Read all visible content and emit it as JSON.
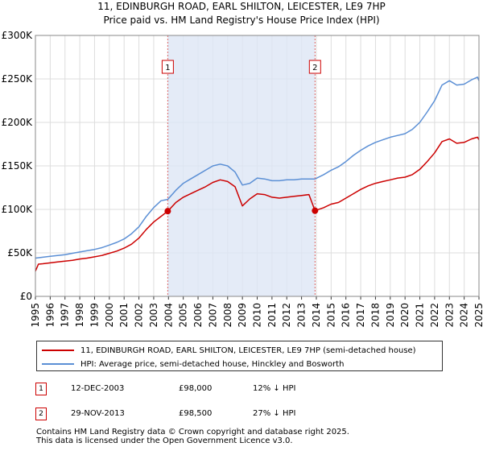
{
  "title_line1": "11, EDINBURGH ROAD, EARL SHILTON, LEICESTER, LE9 7HP",
  "title_line2": "Price paid vs. HM Land Registry's House Price Index (HPI)",
  "legend": {
    "property_label": "11, EDINBURGH ROAD, EARL SHILTON, LEICESTER, LE9 7HP (semi-detached house)",
    "hpi_label": "HPI: Average price, semi-detached house, Hinckley and Bosworth"
  },
  "sales": [
    {
      "num": "1",
      "date": "12-DEC-2003",
      "price": "£98,000",
      "hpi": "12% ↓ HPI"
    },
    {
      "num": "2",
      "date": "29-NOV-2013",
      "price": "£98,500",
      "hpi": "27% ↓ HPI"
    }
  ],
  "footer_line1": "Contains HM Land Registry data © Crown copyright and database right 2025.",
  "footer_line2": "This data is licensed under the Open Government Licence v3.0.",
  "colors": {
    "property": "#cc0000",
    "hpi": "#5b8fd5",
    "shade": "#dde6f5",
    "grid": "#dddddd"
  },
  "chart_data": {
    "type": "line",
    "title": "Price paid vs. HM Land Registry's House Price Index (HPI)",
    "xlabel": "",
    "ylabel": "",
    "xlim": [
      1995,
      2025
    ],
    "ylim": [
      0,
      300000
    ],
    "x_ticks": [
      "1995",
      "1996",
      "1997",
      "1998",
      "1999",
      "2000",
      "2001",
      "2002",
      "2003",
      "2004",
      "2005",
      "2006",
      "2007",
      "2008",
      "2009",
      "2010",
      "2011",
      "2012",
      "2013",
      "2014",
      "2015",
      "2016",
      "2017",
      "2018",
      "2019",
      "2020",
      "2021",
      "2022",
      "2023",
      "2024",
      "2025"
    ],
    "y_ticks": [
      0,
      50000,
      100000,
      150000,
      200000,
      250000,
      300000
    ],
    "y_tick_labels": [
      "£0",
      "£50K",
      "£100K",
      "£150K",
      "£200K",
      "£250K",
      "£300K"
    ],
    "shaded_range": [
      2003.95,
      2013.91
    ],
    "markers": [
      {
        "label": "1",
        "x": 2003.95,
        "y": 98000
      },
      {
        "label": "2",
        "x": 2013.91,
        "y": 98500
      }
    ],
    "series": [
      {
        "name": "HPI: Average price, semi-detached house, Hinckley and Bosworth",
        "points": [
          [
            1995.0,
            44000
          ],
          [
            1995.5,
            45000
          ],
          [
            1996.0,
            46000
          ],
          [
            1996.5,
            47000
          ],
          [
            1997.0,
            48000
          ],
          [
            1997.5,
            49500
          ],
          [
            1998.0,
            51000
          ],
          [
            1998.5,
            52500
          ],
          [
            1999.0,
            54000
          ],
          [
            1999.5,
            56000
          ],
          [
            2000.0,
            59000
          ],
          [
            2000.5,
            62000
          ],
          [
            2001.0,
            66000
          ],
          [
            2001.5,
            72000
          ],
          [
            2002.0,
            80000
          ],
          [
            2002.5,
            92000
          ],
          [
            2003.0,
            102000
          ],
          [
            2003.5,
            110000
          ],
          [
            2003.95,
            111500
          ],
          [
            2004.5,
            122000
          ],
          [
            2005.0,
            130000
          ],
          [
            2005.5,
            135000
          ],
          [
            2006.0,
            140000
          ],
          [
            2006.5,
            145000
          ],
          [
            2007.0,
            150000
          ],
          [
            2007.5,
            152000
          ],
          [
            2008.0,
            150000
          ],
          [
            2008.5,
            143000
          ],
          [
            2009.0,
            128000
          ],
          [
            2009.5,
            130000
          ],
          [
            2010.0,
            136000
          ],
          [
            2010.5,
            135000
          ],
          [
            2011.0,
            133000
          ],
          [
            2011.5,
            133000
          ],
          [
            2012.0,
            134000
          ],
          [
            2012.5,
            134000
          ],
          [
            2013.0,
            135000
          ],
          [
            2013.5,
            135000
          ],
          [
            2013.91,
            135000
          ],
          [
            2014.5,
            140000
          ],
          [
            2015.0,
            145000
          ],
          [
            2015.5,
            149000
          ],
          [
            2016.0,
            155000
          ],
          [
            2016.5,
            162000
          ],
          [
            2017.0,
            168000
          ],
          [
            2017.5,
            173000
          ],
          [
            2018.0,
            177000
          ],
          [
            2018.5,
            180000
          ],
          [
            2019.0,
            183000
          ],
          [
            2019.5,
            185000
          ],
          [
            2020.0,
            187000
          ],
          [
            2020.5,
            192000
          ],
          [
            2021.0,
            200000
          ],
          [
            2021.5,
            212000
          ],
          [
            2022.0,
            225000
          ],
          [
            2022.5,
            243000
          ],
          [
            2023.0,
            248000
          ],
          [
            2023.5,
            243000
          ],
          [
            2024.0,
            244000
          ],
          [
            2024.5,
            249000
          ],
          [
            2024.9,
            252000
          ],
          [
            2025.0,
            248000
          ]
        ]
      },
      {
        "name": "11, EDINBURGH ROAD, EARL SHILTON, LEICESTER, LE9 7HP (semi-detached house)",
        "points": [
          [
            1995.0,
            29000
          ],
          [
            1995.2,
            37000
          ],
          [
            1995.5,
            37500
          ],
          [
            1996.0,
            38500
          ],
          [
            1996.5,
            39500
          ],
          [
            1997.0,
            40500
          ],
          [
            1997.5,
            41500
          ],
          [
            1998.0,
            43000
          ],
          [
            1998.5,
            44000
          ],
          [
            1999.0,
            45500
          ],
          [
            1999.5,
            47000
          ],
          [
            2000.0,
            49500
          ],
          [
            2000.5,
            52000
          ],
          [
            2001.0,
            55500
          ],
          [
            2001.5,
            60000
          ],
          [
            2002.0,
            67000
          ],
          [
            2002.5,
            77000
          ],
          [
            2003.0,
            85500
          ],
          [
            2003.5,
            92000
          ],
          [
            2003.95,
            98000
          ],
          [
            2004.5,
            108000
          ],
          [
            2005.0,
            114000
          ],
          [
            2005.5,
            118000
          ],
          [
            2006.0,
            122000
          ],
          [
            2006.5,
            126000
          ],
          [
            2007.0,
            131000
          ],
          [
            2007.5,
            134000
          ],
          [
            2008.0,
            132000
          ],
          [
            2008.5,
            126000
          ],
          [
            2009.0,
            104000
          ],
          [
            2009.5,
            112000
          ],
          [
            2010.0,
            118000
          ],
          [
            2010.5,
            117000
          ],
          [
            2011.0,
            114000
          ],
          [
            2011.5,
            113000
          ],
          [
            2012.0,
            114000
          ],
          [
            2012.5,
            115000
          ],
          [
            2013.0,
            116000
          ],
          [
            2013.5,
            117000
          ],
          [
            2013.91,
            98500
          ],
          [
            2014.5,
            102000
          ],
          [
            2015.0,
            106000
          ],
          [
            2015.5,
            108000
          ],
          [
            2016.0,
            113000
          ],
          [
            2016.5,
            118000
          ],
          [
            2017.0,
            123000
          ],
          [
            2017.5,
            127000
          ],
          [
            2018.0,
            130000
          ],
          [
            2018.5,
            132000
          ],
          [
            2019.0,
            134000
          ],
          [
            2019.5,
            136000
          ],
          [
            2020.0,
            137000
          ],
          [
            2020.5,
            140000
          ],
          [
            2021.0,
            146000
          ],
          [
            2021.5,
            155000
          ],
          [
            2022.0,
            165000
          ],
          [
            2022.5,
            178000
          ],
          [
            2023.0,
            181000
          ],
          [
            2023.5,
            176000
          ],
          [
            2024.0,
            177000
          ],
          [
            2024.5,
            181000
          ],
          [
            2024.9,
            183000
          ],
          [
            2025.0,
            180000
          ]
        ]
      }
    ]
  }
}
